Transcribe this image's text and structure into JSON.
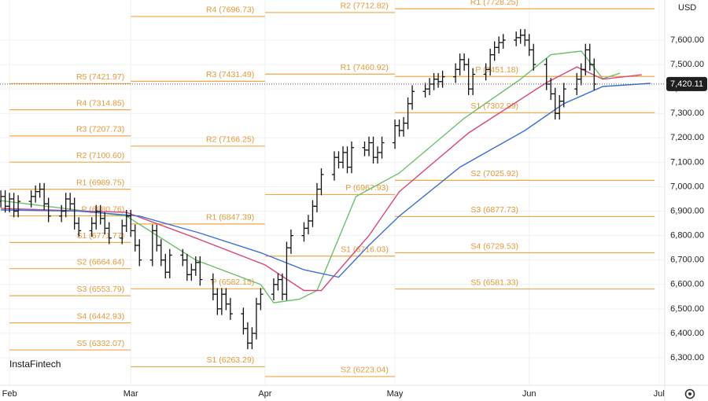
{
  "chart_data": {
    "type": "ohlc",
    "currency": "USD",
    "watermark": "InstaFintech",
    "grid": true,
    "bar_color": "#111111",
    "level_color": "#f0a848",
    "xlim": [
      29.8,
      183.3
    ],
    "ylim": [
      6187.4,
      7764.1
    ],
    "xticks": [
      {
        "value": 32,
        "label": "Feb"
      },
      {
        "value": 60,
        "label": "Mar"
      },
      {
        "value": 91,
        "label": "Apr"
      },
      {
        "value": 121,
        "label": "May"
      },
      {
        "value": 152,
        "label": "Jun"
      },
      {
        "value": 182,
        "label": "Jul"
      }
    ],
    "yticks": [
      {
        "value": 6300,
        "label": "6,300.00"
      },
      {
        "value": 6400,
        "label": "6,400.00"
      },
      {
        "value": 6500,
        "label": "6,500.00"
      },
      {
        "value": 6600,
        "label": "6,600.00"
      },
      {
        "value": 6700,
        "label": "6,700.00"
      },
      {
        "value": 6800,
        "label": "6,800.00"
      },
      {
        "value": 6900,
        "label": "6,900.00"
      },
      {
        "value": 7000,
        "label": "7,000.00"
      },
      {
        "value": 7100,
        "label": "7,100.00"
      },
      {
        "value": 7200,
        "label": "7,200.00"
      },
      {
        "value": 7300,
        "label": "7,300.00"
      },
      {
        "value": 7400,
        "label": "7,400.00"
      },
      {
        "value": 7500,
        "label": "7,500.00"
      },
      {
        "value": 7600,
        "label": "7,600.00"
      }
    ],
    "last_price": {
      "value": 7420.11,
      "label": "7,420.11"
    },
    "x": [
      30,
      31,
      32,
      33,
      34,
      37,
      38,
      39,
      40,
      41,
      44,
      45,
      46,
      47,
      48,
      51,
      52,
      53,
      54,
      55,
      58,
      59,
      60,
      61,
      62,
      65,
      66,
      67,
      68,
      69,
      72,
      73,
      74,
      75,
      76,
      79,
      80,
      81,
      82,
      83,
      86,
      87,
      88,
      89,
      90,
      93,
      94,
      95,
      96,
      97,
      100,
      101,
      102,
      103,
      104,
      107,
      108,
      109,
      110,
      111,
      114,
      115,
      116,
      117,
      118,
      121,
      122,
      123,
      124,
      125,
      128,
      129,
      130,
      131,
      132,
      135,
      136,
      137,
      138,
      139,
      142,
      143,
      144,
      145,
      146,
      149,
      150,
      151,
      152,
      153,
      156,
      157,
      158,
      159,
      160,
      163,
      164,
      165,
      166,
      167
    ],
    "open": [
      6940,
      6960,
      6920,
      6950,
      6900,
      6940,
      6960,
      6980,
      6990,
      6930,
      6880,
      6900,
      6950,
      6930,
      6850,
      6820,
      6850,
      6900,
      6870,
      6830,
      6790,
      6840,
      6880,
      6820,
      6760,
      6700,
      6820,
      6760,
      6700,
      6650,
      6720,
      6700,
      6640,
      6660,
      6690,
      6620,
      6560,
      6500,
      6560,
      6520,
      6480,
      6420,
      6360,
      6400,
      6520,
      6560,
      6600,
      6620,
      6560,
      6750,
      6800,
      6830,
      6860,
      6920,
      6990,
      7050,
      7120,
      7100,
      7140,
      7080,
      7160,
      7150,
      7180,
      7120,
      7140,
      7180,
      7250,
      7230,
      7260,
      7340,
      7390,
      7400,
      7420,
      7440,
      7430,
      7450,
      7480,
      7520,
      7500,
      7400,
      7460,
      7480,
      7540,
      7570,
      7590,
      7600,
      7610,
      7620,
      7600,
      7560,
      7500,
      7420,
      7380,
      7300,
      7350,
      7400,
      7440,
      7480,
      7560,
      7500
    ],
    "high": [
      6985,
      6985,
      6975,
      6975,
      6965,
      6985,
      7005,
      7015,
      7015,
      6955,
      6925,
      6975,
      6975,
      6955,
      6875,
      6875,
      6925,
      6925,
      6895,
      6855,
      6865,
      6905,
      6905,
      6845,
      6785,
      6845,
      6845,
      6785,
      6725,
      6745,
      6745,
      6725,
      6685,
      6715,
      6715,
      6645,
      6585,
      6585,
      6585,
      6545,
      6505,
      6445,
      6425,
      6545,
      6585,
      6625,
      6645,
      6645,
      6775,
      6825,
      6855,
      6885,
      6945,
      7015,
      7075,
      7145,
      7145,
      7165,
      7165,
      7185,
      7185,
      7205,
      7205,
      7165,
      7205,
      7275,
      7275,
      7285,
      7365,
      7415,
      7425,
      7445,
      7465,
      7465,
      7475,
      7505,
      7545,
      7545,
      7525,
      7485,
      7505,
      7565,
      7595,
      7615,
      7625,
      7635,
      7645,
      7645,
      7625,
      7585,
      7525,
      7445,
      7405,
      7375,
      7425,
      7465,
      7505,
      7585,
      7585,
      7525
    ],
    "low": [
      6915,
      6895,
      6895,
      6875,
      6875,
      6915,
      6935,
      6955,
      6905,
      6855,
      6855,
      6875,
      6905,
      6825,
      6795,
      6795,
      6825,
      6845,
      6805,
      6765,
      6765,
      6815,
      6795,
      6735,
      6675,
      6675,
      6735,
      6675,
      6625,
      6625,
      6675,
      6615,
      6615,
      6635,
      6595,
      6535,
      6475,
      6475,
      6495,
      6455,
      6395,
      6335,
      6335,
      6375,
      6495,
      6535,
      6575,
      6535,
      6535,
      6725,
      6775,
      6805,
      6835,
      6895,
      6965,
      7025,
      7075,
      7075,
      7055,
      7055,
      7125,
      7125,
      7095,
      7095,
      7115,
      7155,
      7205,
      7205,
      7235,
      7315,
      7365,
      7375,
      7395,
      7405,
      7405,
      7425,
      7455,
      7475,
      7375,
      7375,
      7435,
      7455,
      7515,
      7545,
      7565,
      7575,
      7585,
      7575,
      7535,
      7475,
      7395,
      7355,
      7275,
      7275,
      7325,
      7375,
      7415,
      7455,
      7475,
      7395
    ],
    "close": [
      6960,
      6920,
      6950,
      6900,
      6940,
      6960,
      6980,
      6990,
      6930,
      6880,
      6900,
      6950,
      6930,
      6850,
      6820,
      6850,
      6900,
      6870,
      6830,
      6790,
      6840,
      6880,
      6820,
      6760,
      6700,
      6820,
      6760,
      6700,
      6650,
      6720,
      6700,
      6640,
      6660,
      6690,
      6620,
      6560,
      6500,
      6560,
      6520,
      6480,
      6420,
      6360,
      6400,
      6520,
      6560,
      6600,
      6620,
      6560,
      6750,
      6800,
      6830,
      6860,
      6920,
      6990,
      7050,
      7120,
      7100,
      7140,
      7080,
      7160,
      7150,
      7180,
      7120,
      7140,
      7180,
      7250,
      7230,
      7260,
      7340,
      7390,
      7400,
      7420,
      7440,
      7430,
      7450,
      7480,
      7520,
      7500,
      7400,
      7460,
      7480,
      7540,
      7570,
      7590,
      7600,
      7610,
      7620,
      7600,
      7560,
      7500,
      7420,
      7380,
      7300,
      7350,
      7400,
      7440,
      7480,
      7560,
      7500,
      7420
    ],
    "moving_averages": [
      {
        "color": "#6cbf6c",
        "x": [
          30,
          59,
          75,
          90,
          93,
          99,
          103,
          112,
          122,
          137,
          150,
          157,
          164,
          169,
          173
        ],
        "values": [
          6943,
          6880,
          6700,
          6600,
          6525,
          6540,
          6575,
          6960,
          7056,
          7280,
          7440,
          7540,
          7555,
          7442,
          7465
        ]
      },
      {
        "color": "#d9477a",
        "x": [
          30,
          59,
          75,
          91,
          100,
          104,
          115,
          122,
          138,
          156,
          163,
          169,
          178
        ],
        "values": [
          6911,
          6895,
          6790,
          6680,
          6575,
          6575,
          6800,
          6980,
          7220,
          7426,
          7490,
          7440,
          7458
        ]
      },
      {
        "color": "#3d6fd6",
        "x": [
          30,
          48,
          62,
          76,
          90,
          100,
          108,
          115,
          122,
          136,
          151,
          160,
          169,
          180
        ],
        "values": [
          6905,
          6900,
          6880,
          6810,
          6730,
          6660,
          6630,
          6760,
          6880,
          7080,
          7230,
          7340,
          7410,
          7423
        ]
      }
    ],
    "pivot_levels": [
      {
        "x": [
          32,
          60
        ],
        "levels": [
          {
            "label": "R5 (7421.97)",
            "value": 7421.97
          },
          {
            "label": "R4 (7314.85)",
            "value": 7314.85
          },
          {
            "label": "R3 (7207.73)",
            "value": 7207.73
          },
          {
            "label": "R2 (7100.60)",
            "value": 7100.6
          },
          {
            "label": "R1 (6989.75)",
            "value": 6989.75
          },
          {
            "label": "P (6880.76)",
            "value": 6880.76
          },
          {
            "label": "S1 (6771.77)",
            "value": 6771.77
          },
          {
            "label": "S2 (6664.64)",
            "value": 6664.64
          },
          {
            "label": "S3 (6553.79)",
            "value": 6553.79
          },
          {
            "label": "S4 (6442.93)",
            "value": 6442.93
          },
          {
            "label": "S5 (6332.07)",
            "value": 6332.07
          }
        ]
      },
      {
        "x": [
          60,
          91
        ],
        "levels": [
          {
            "label": "R4 (7696.73)",
            "value": 7696.73
          },
          {
            "label": "R3 (7431.49)",
            "value": 7431.49
          },
          {
            "label": "R2 (7166.25)",
            "value": 7166.25
          },
          {
            "label": "R1 (6847.39)",
            "value": 6847.39
          },
          {
            "label": "P (6582.15)",
            "value": 6582.15
          },
          {
            "label": "S1 (6263.29)",
            "value": 6263.29
          }
        ]
      },
      {
        "x": [
          91,
          121
        ],
        "levels": [
          {
            "label": "R2 (7712.82)",
            "value": 7712.82
          },
          {
            "label": "R1 (7460.92)",
            "value": 7460.92
          },
          {
            "label": "P (6967.93)",
            "value": 6967.93
          },
          {
            "label": "S1 (6716.03)",
            "value": 6716.03
          },
          {
            "label": "S2 (6223.04)",
            "value": 6223.04
          }
        ]
      },
      {
        "x": [
          121,
          181
        ],
        "levels": [
          {
            "label": "R1 (7728.25)",
            "value": 7728.25
          },
          {
            "label": "P (7451.18)",
            "value": 7451.18
          },
          {
            "label": "S1 (7302.99)",
            "value": 7302.99
          },
          {
            "label": "S2 (7025.92)",
            "value": 7025.92
          },
          {
            "label": "S3 (6877.73)",
            "value": 6877.73
          },
          {
            "label": "S4 (6729.53)",
            "value": 6729.53
          },
          {
            "label": "S5 (6581.33)",
            "value": 6581.33
          }
        ]
      }
    ]
  }
}
